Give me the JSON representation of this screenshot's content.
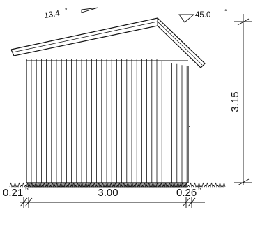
{
  "drawing": {
    "roof_angles": {
      "left": {
        "value": "13.4",
        "degree": "°"
      },
      "right": {
        "value": "45.0",
        "degree": "°"
      }
    },
    "dimensions": {
      "height": "3.15",
      "width": "3.00",
      "left_overhang": {
        "main": "0.21",
        "super": "5"
      },
      "right_overhang": {
        "main": "0.26",
        "super": "5"
      }
    }
  },
  "colors": {
    "line": "#111111",
    "background": "#ffffff",
    "ground_hatch": "#333333"
  }
}
